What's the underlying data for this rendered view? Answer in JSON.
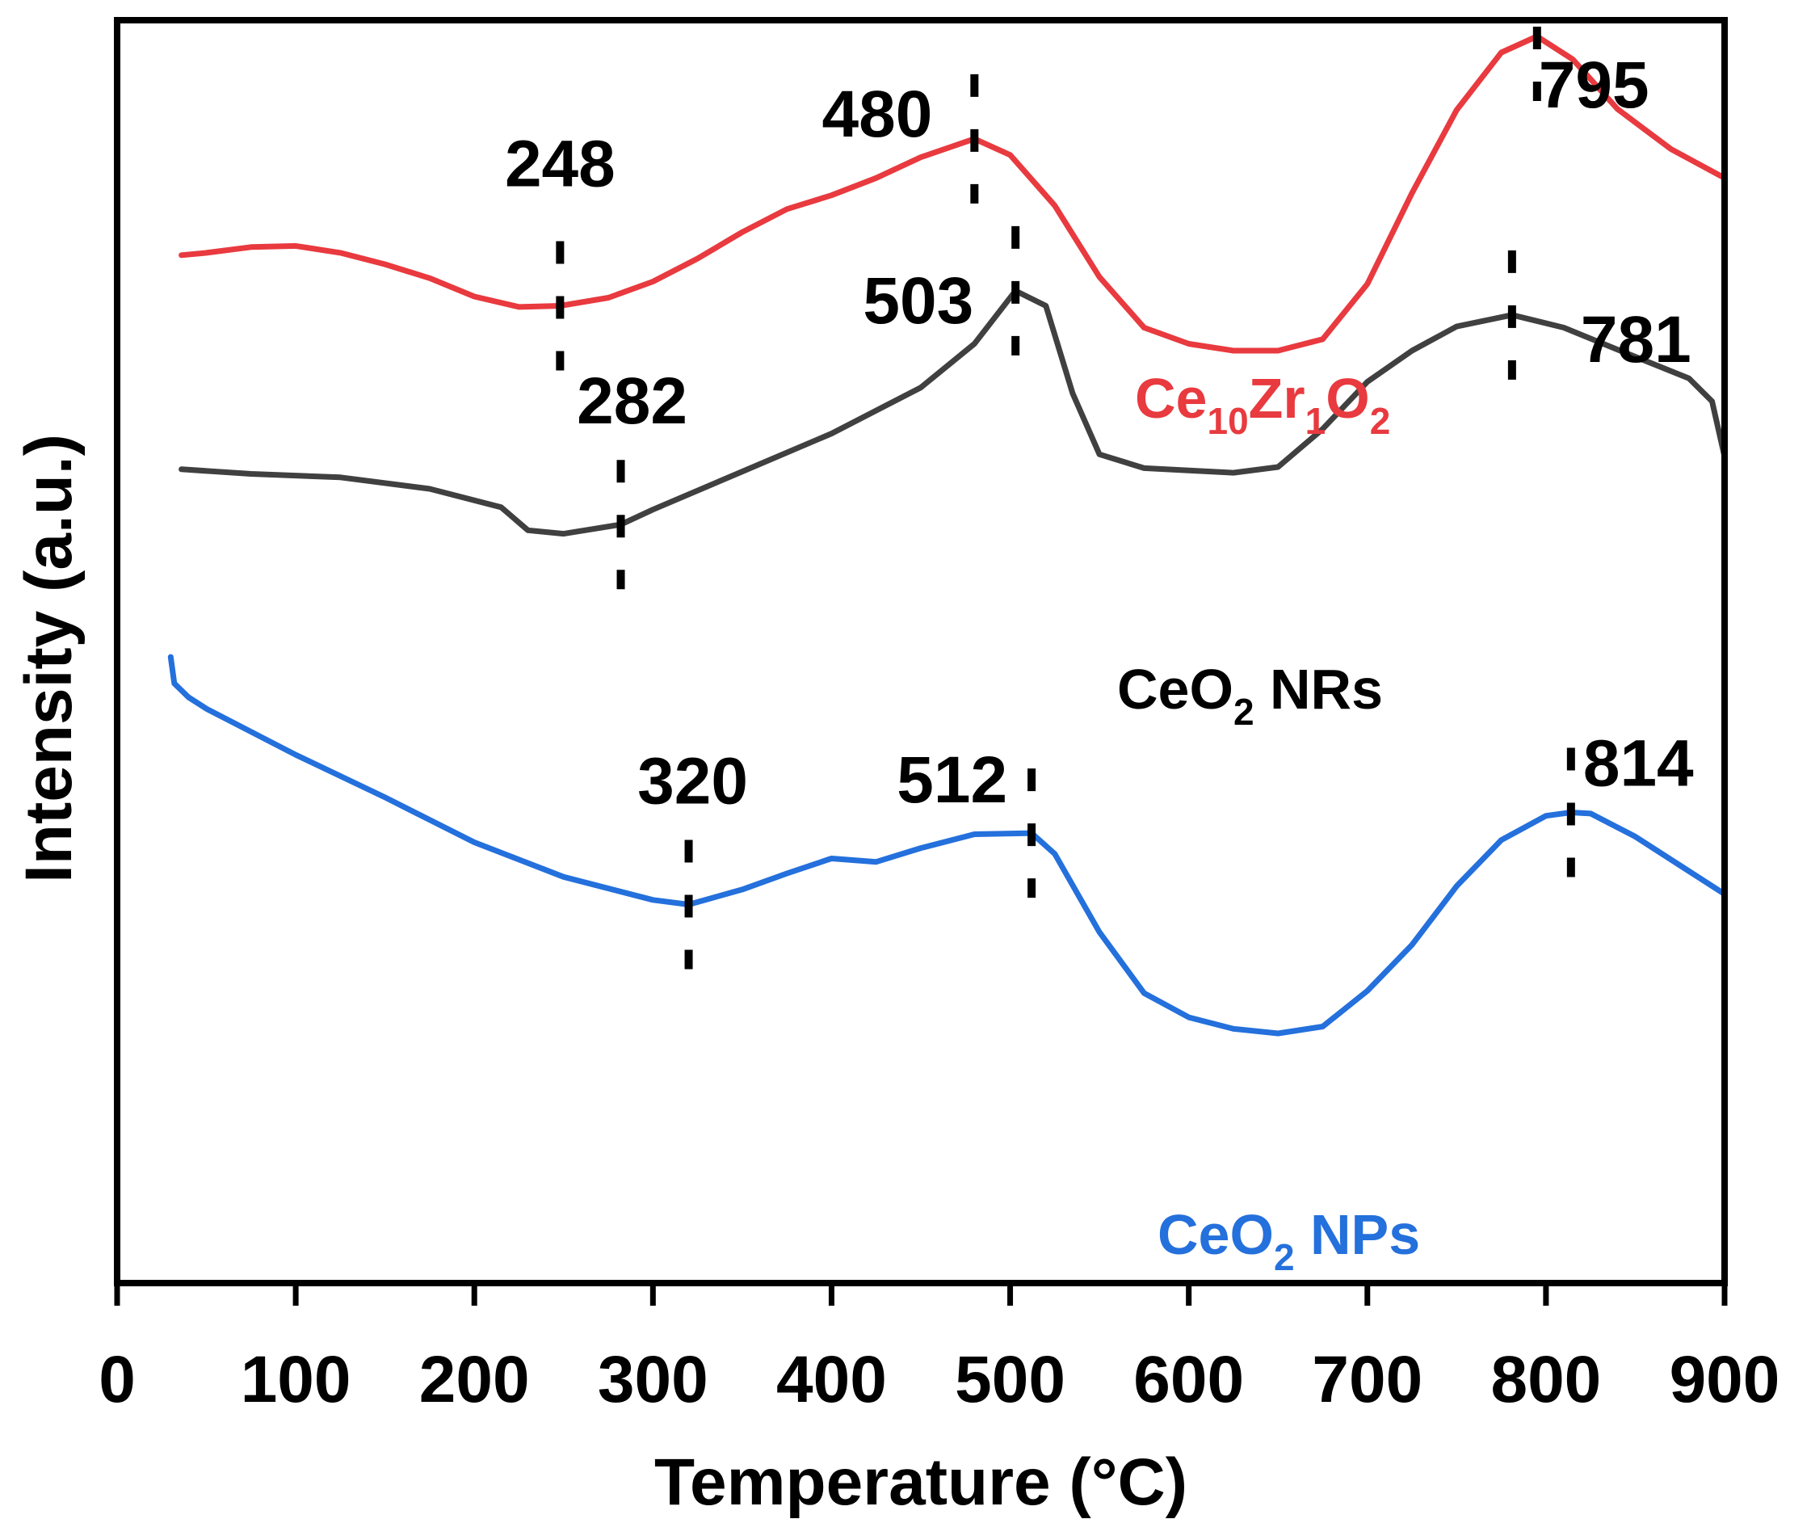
{
  "chart_data": {
    "type": "line",
    "title": "",
    "xlabel": "Temperature (°C)",
    "ylabel": "Intensity (a.u.)",
    "xlim": [
      0,
      900
    ],
    "ylim": [
      0,
      1
    ],
    "xticks": [
      "0",
      "100",
      "200",
      "300",
      "400",
      "500",
      "600",
      "700",
      "800",
      "900"
    ],
    "grid": false,
    "series": [
      {
        "name": "Ce10Zr1O2",
        "label": {
          "base1": "Ce",
          "sub1": "10",
          "base2": "Zr",
          "sub2": "1",
          "base3": "O",
          "sub3": "2"
        },
        "color": "#e83a3f",
        "x": [
          36,
          50,
          75,
          100,
          125,
          150,
          175,
          200,
          225,
          248,
          275,
          300,
          325,
          350,
          375,
          400,
          425,
          450,
          480,
          500,
          525,
          550,
          575,
          600,
          625,
          650,
          675,
          700,
          725,
          750,
          775,
          795,
          815,
          840,
          870,
          900
        ],
        "y": [
          0.81,
          0.812,
          0.817,
          0.818,
          0.812,
          0.802,
          0.79,
          0.774,
          0.765,
          0.766,
          0.773,
          0.787,
          0.807,
          0.83,
          0.85,
          0.862,
          0.877,
          0.895,
          0.911,
          0.897,
          0.853,
          0.791,
          0.747,
          0.733,
          0.727,
          0.727,
          0.737,
          0.785,
          0.864,
          0.936,
          0.986,
          1.0,
          0.98,
          0.937,
          0.902,
          0.877
        ]
      },
      {
        "name": "CeO2 NRs",
        "label": {
          "base1": "CeO",
          "sub1": "2",
          "rest": " NRs"
        },
        "color": "#404040",
        "x": [
          36,
          75,
          125,
          175,
          215,
          230,
          250,
          282,
          300,
          350,
          400,
          450,
          480,
          503,
          520,
          535,
          550,
          575,
          600,
          625,
          650,
          675,
          700,
          725,
          750,
          781,
          810,
          840,
          880,
          893,
          900
        ],
        "y": [
          0.624,
          0.62,
          0.617,
          0.607,
          0.591,
          0.571,
          0.568,
          0.576,
          0.589,
          0.622,
          0.655,
          0.695,
          0.733,
          0.779,
          0.766,
          0.69,
          0.637,
          0.625,
          0.623,
          0.621,
          0.626,
          0.659,
          0.7,
          0.727,
          0.748,
          0.758,
          0.747,
          0.728,
          0.703,
          0.683,
          0.635
        ]
      },
      {
        "name": "CeO2 NPs",
        "label": {
          "base1": "CeO",
          "sub1": "2",
          "rest": " NPs"
        },
        "color": "#2470dc",
        "x": [
          30,
          32,
          40,
          50,
          75,
          100,
          150,
          200,
          250,
          300,
          320,
          350,
          375,
          400,
          425,
          450,
          480,
          512,
          525,
          550,
          575,
          600,
          625,
          650,
          675,
          700,
          725,
          750,
          775,
          800,
          814,
          825,
          850,
          875,
          900
        ],
        "y": [
          0.461,
          0.438,
          0.426,
          0.416,
          0.396,
          0.376,
          0.339,
          0.3,
          0.27,
          0.25,
          0.246,
          0.259,
          0.273,
          0.286,
          0.283,
          0.295,
          0.307,
          0.308,
          0.29,
          0.222,
          0.169,
          0.148,
          0.138,
          0.134,
          0.14,
          0.171,
          0.211,
          0.262,
          0.302,
          0.323,
          0.326,
          0.325,
          0.305,
          0.28,
          0.255
        ]
      }
    ],
    "peaks": [
      {
        "series": "Ce10Zr1O2",
        "label": "248",
        "x": 248,
        "y": 0.766
      },
      {
        "series": "Ce10Zr1O2",
        "label": "480",
        "x": 480,
        "y": 0.911
      },
      {
        "series": "Ce10Zr1O2",
        "label": "795",
        "x": 795,
        "y": 1.0
      },
      {
        "series": "CeO2 NRs",
        "label": "282",
        "x": 282,
        "y": 0.576
      },
      {
        "series": "CeO2 NRs",
        "label": "503",
        "x": 503,
        "y": 0.779
      },
      {
        "series": "CeO2 NRs",
        "label": "781",
        "x": 781,
        "y": 0.758
      },
      {
        "series": "CeO2 NPs",
        "label": "320",
        "x": 320,
        "y": 0.246
      },
      {
        "series": "CeO2 NPs",
        "label": "512",
        "x": 512,
        "y": 0.308
      },
      {
        "series": "CeO2 NPs",
        "label": "814",
        "x": 814,
        "y": 0.326
      }
    ]
  }
}
